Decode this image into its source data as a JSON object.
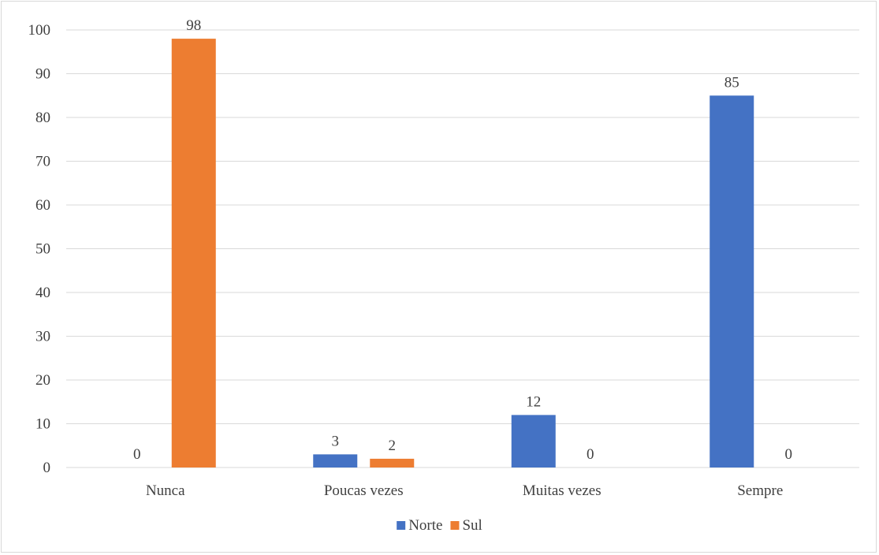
{
  "chart_data": {
    "type": "bar",
    "categories": [
      "Nunca",
      "Poucas vezes",
      "Muitas vezes",
      "Sempre"
    ],
    "series": [
      {
        "name": "Norte",
        "values": [
          0,
          3,
          12,
          85
        ],
        "color": "#4472C4"
      },
      {
        "name": "Sul",
        "values": [
          98,
          2,
          0,
          0
        ],
        "color": "#ED7D31"
      }
    ],
    "ylim": [
      0,
      100
    ],
    "yticks": [
      0,
      10,
      20,
      30,
      40,
      50,
      60,
      70,
      80,
      90,
      100
    ],
    "grid": true,
    "legend_position": "bottom",
    "data_labels": true,
    "gridline_color": "#d9d9d9",
    "text_color": "#404040"
  }
}
